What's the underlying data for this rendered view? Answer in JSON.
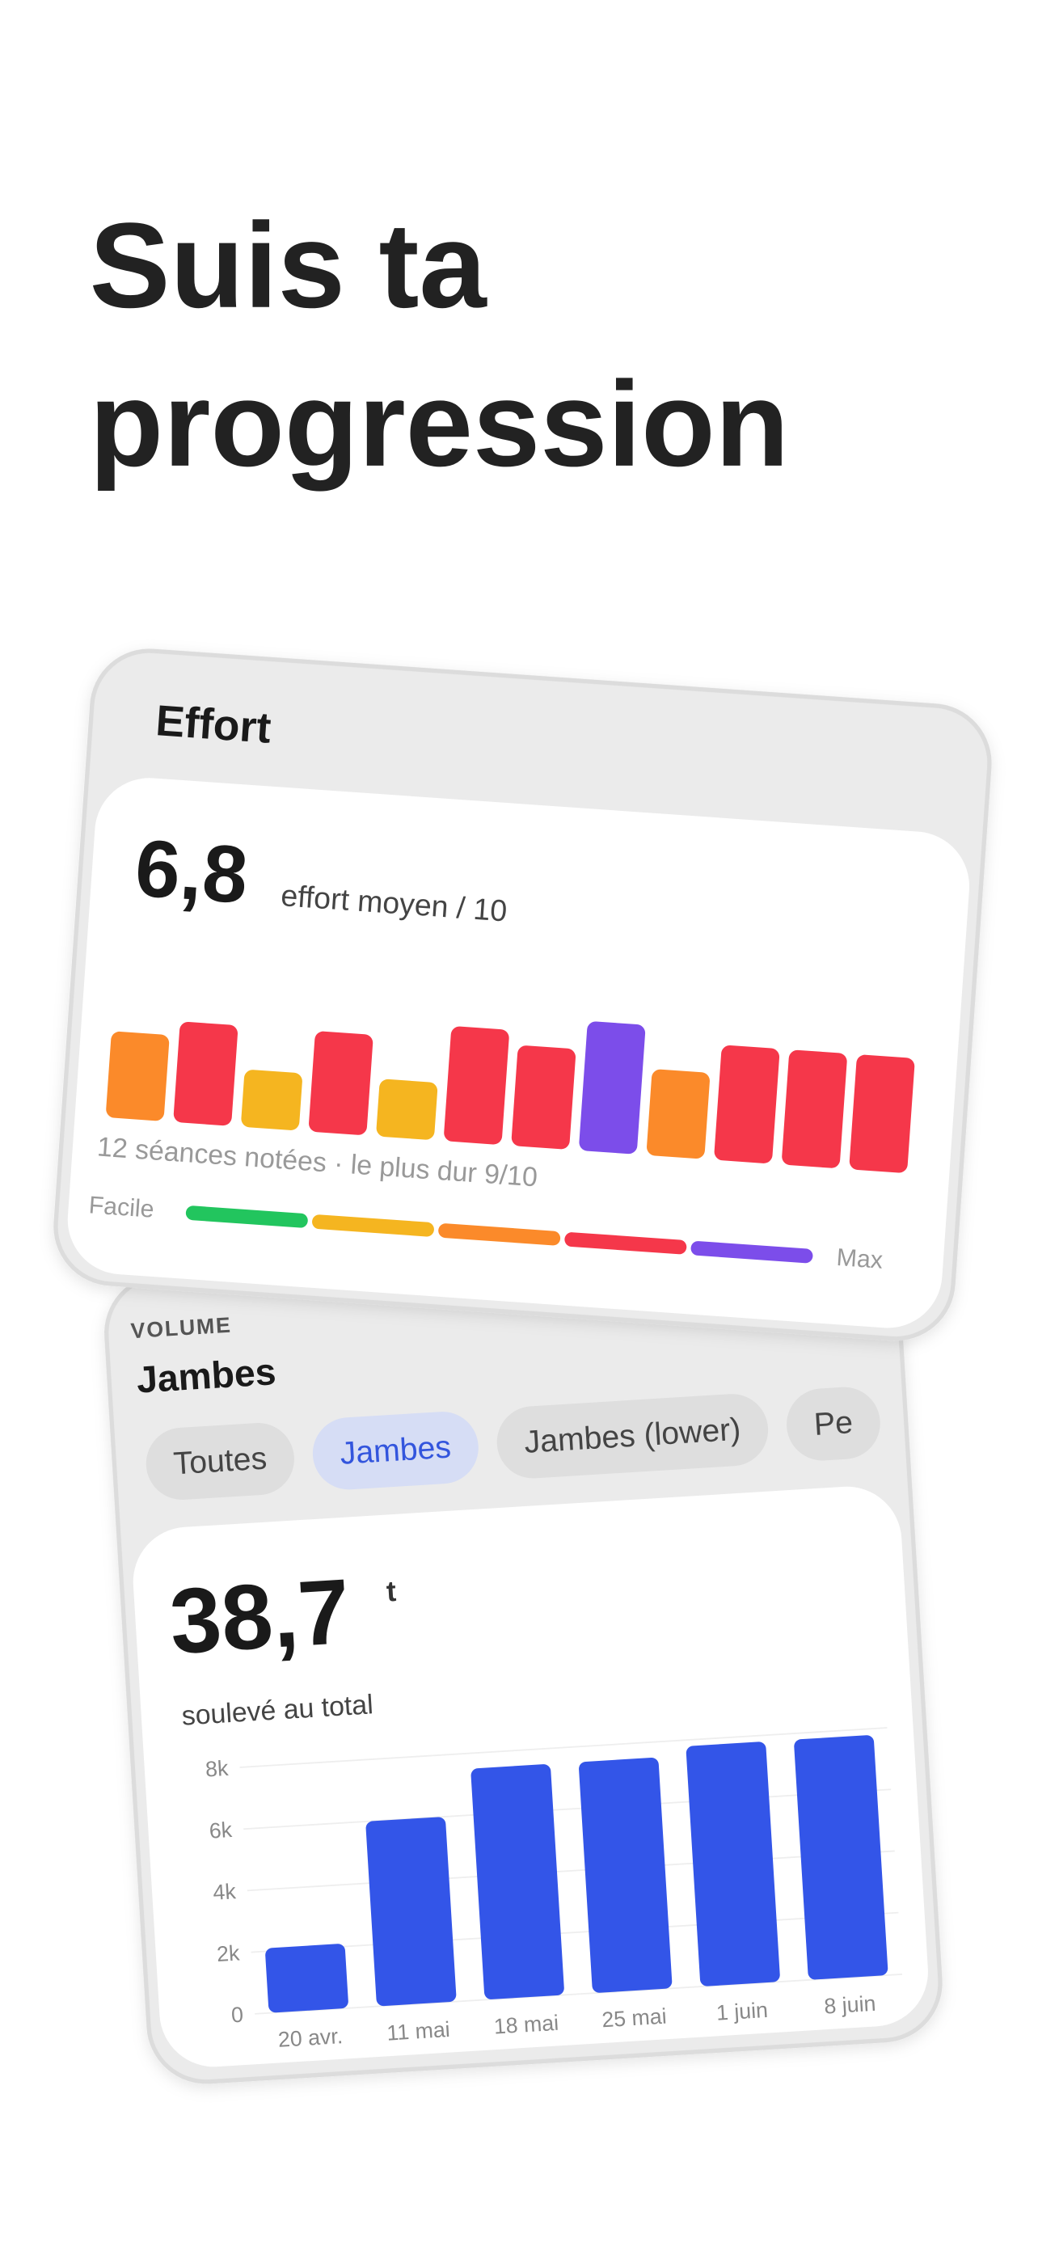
{
  "header": {
    "title_lines": [
      "Suis ta",
      "progression"
    ]
  },
  "effort_card": {
    "title": "Effort",
    "average": "6,8",
    "average_label": "effort moyen / 10",
    "caption": "12 séances notées · le plus dur 9/10",
    "scale_min_label": "Facile",
    "scale_max_label": "Max",
    "scale_colors": [
      "#22c55e",
      "#f5b520",
      "#fb8a2a",
      "#f5374a",
      "#7c4dea"
    ]
  },
  "volume_card": {
    "section_label": "VOLUME",
    "selected": "Jambes",
    "chips": [
      "Toutes",
      "Jambes",
      "Jambes (lower)",
      "Pe"
    ],
    "active_chip": 1,
    "total": "38,7",
    "unit": "t",
    "total_label": "soulevé au total"
  },
  "chart_data": [
    {
      "type": "bar",
      "values": [
        6,
        7,
        4,
        7,
        4,
        8,
        7,
        9,
        6,
        8,
        8,
        8
      ],
      "colors": [
        "#fb8a2a",
        "#f5374a",
        "#f5b520",
        "#f5374a",
        "#f5b520",
        "#f5374a",
        "#f5374a",
        "#7c4dea",
        "#fb8a2a",
        "#f5374a",
        "#f5374a",
        "#f5374a"
      ],
      "ylim": [
        0,
        10
      ]
    },
    {
      "type": "bar",
      "categories": [
        "20 avr.",
        "11 mai",
        "18 mai",
        "25 mai",
        "1 juin",
        "8 juin"
      ],
      "values": [
        2100,
        6000,
        7500,
        7500,
        7800,
        7800
      ],
      "color": "#3355e8",
      "ylim": [
        0,
        8500
      ],
      "yticks": [
        0,
        {
          "value": 2000,
          "label": "2k"
        },
        {
          "value": 4000,
          "label": "4k"
        },
        {
          "value": 6000,
          "label": "6k"
        },
        {
          "value": 8000,
          "label": "8k"
        }
      ],
      "grid": true
    }
  ]
}
